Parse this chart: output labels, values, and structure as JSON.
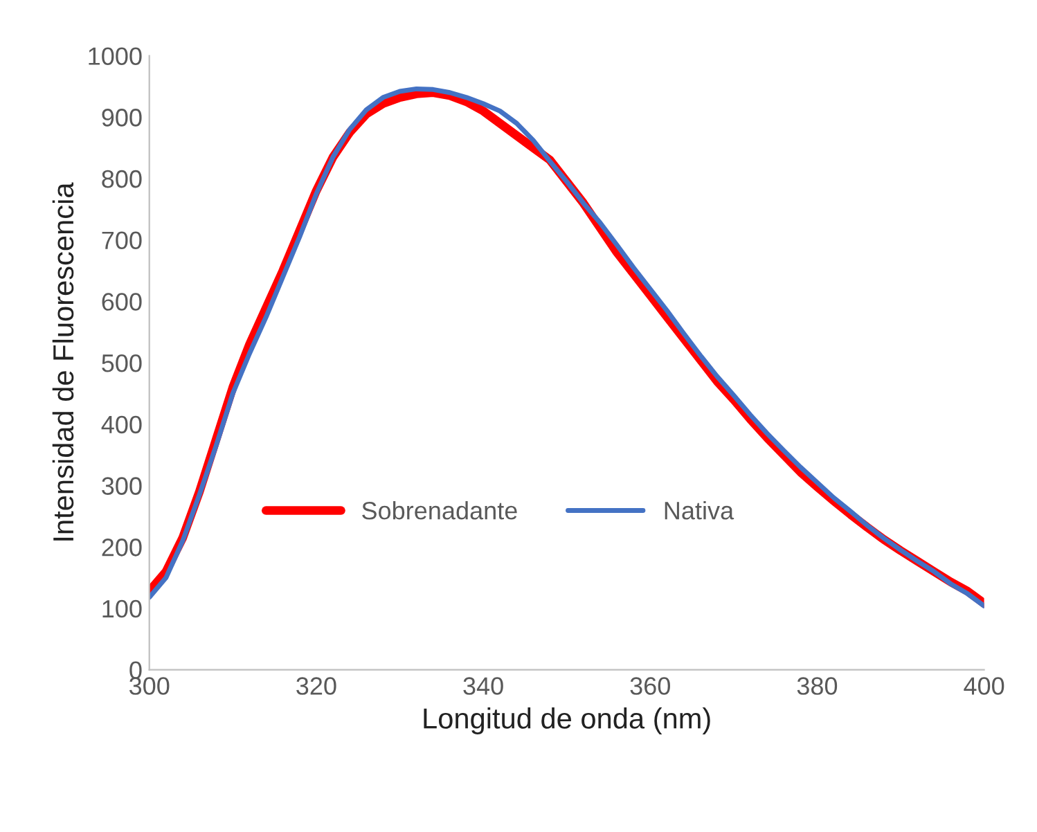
{
  "chart_data": {
    "type": "line",
    "xlabel": "Longitud de onda (nm)",
    "ylabel": "Intensidad de Fluorescencia",
    "x": [
      300,
      302,
      304,
      306,
      308,
      310,
      312,
      314,
      316,
      318,
      320,
      322,
      324,
      326,
      328,
      330,
      332,
      334,
      336,
      338,
      340,
      342,
      344,
      346,
      348,
      350,
      352,
      354,
      356,
      358,
      360,
      362,
      364,
      366,
      368,
      370,
      372,
      374,
      376,
      378,
      380,
      382,
      384,
      386,
      388,
      390,
      392,
      394,
      396,
      398,
      400
    ],
    "series": [
      {
        "name": "Sobrenadante",
        "color": "#ff0000",
        "values": [
          128,
          160,
          215,
          290,
          375,
          460,
          530,
          590,
          650,
          715,
          780,
          835,
          875,
          905,
          922,
          932,
          938,
          940,
          935,
          925,
          910,
          890,
          870,
          850,
          830,
          795,
          760,
          720,
          680,
          645,
          610,
          575,
          540,
          505,
          470,
          440,
          408,
          378,
          350,
          322,
          298,
          275,
          253,
          232,
          212,
          194,
          177,
          160,
          143,
          128,
          108
        ]
      },
      {
        "name": "Nativa",
        "color": "#4472c4",
        "values": [
          118,
          150,
          210,
          285,
          365,
          450,
          515,
          575,
          640,
          705,
          775,
          835,
          880,
          912,
          932,
          942,
          946,
          945,
          940,
          932,
          922,
          910,
          890,
          862,
          828,
          795,
          760,
          728,
          692,
          655,
          620,
          585,
          548,
          512,
          478,
          447,
          415,
          385,
          357,
          330,
          305,
          280,
          258,
          235,
          214,
          195,
          177,
          160,
          140,
          124,
          104
        ]
      }
    ],
    "xlim": [
      300,
      400
    ],
    "xticks": [
      300,
      320,
      340,
      360,
      380,
      400
    ],
    "ylim": [
      0,
      1000
    ],
    "yticks": [
      0,
      100,
      200,
      300,
      400,
      500,
      600,
      700,
      800,
      900,
      1000
    ],
    "legend": "bottom",
    "grid": false
  }
}
